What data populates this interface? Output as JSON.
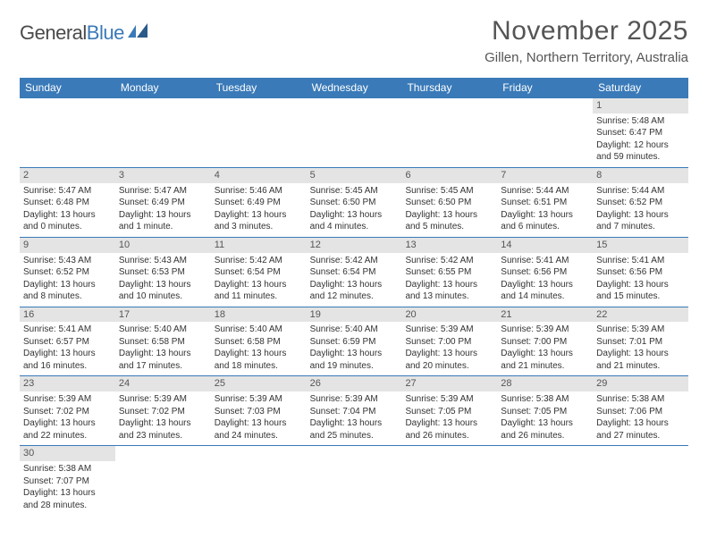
{
  "logo": {
    "part1": "General",
    "part2": "Blue"
  },
  "title": "November 2025",
  "location": "Gillen, Northern Territory, Australia",
  "header_color": "#3a7ab8",
  "daynum_bg": "#e4e4e4",
  "text_color": "#333333",
  "weekdays": [
    "Sunday",
    "Monday",
    "Tuesday",
    "Wednesday",
    "Thursday",
    "Friday",
    "Saturday"
  ],
  "weeks": [
    [
      {
        "empty": true
      },
      {
        "empty": true
      },
      {
        "empty": true
      },
      {
        "empty": true
      },
      {
        "empty": true
      },
      {
        "empty": true
      },
      {
        "n": "1",
        "sunrise": "Sunrise: 5:48 AM",
        "sunset": "Sunset: 6:47 PM",
        "daylight": "Daylight: 12 hours and 59 minutes."
      }
    ],
    [
      {
        "n": "2",
        "sunrise": "Sunrise: 5:47 AM",
        "sunset": "Sunset: 6:48 PM",
        "daylight": "Daylight: 13 hours and 0 minutes."
      },
      {
        "n": "3",
        "sunrise": "Sunrise: 5:47 AM",
        "sunset": "Sunset: 6:49 PM",
        "daylight": "Daylight: 13 hours and 1 minute."
      },
      {
        "n": "4",
        "sunrise": "Sunrise: 5:46 AM",
        "sunset": "Sunset: 6:49 PM",
        "daylight": "Daylight: 13 hours and 3 minutes."
      },
      {
        "n": "5",
        "sunrise": "Sunrise: 5:45 AM",
        "sunset": "Sunset: 6:50 PM",
        "daylight": "Daylight: 13 hours and 4 minutes."
      },
      {
        "n": "6",
        "sunrise": "Sunrise: 5:45 AM",
        "sunset": "Sunset: 6:50 PM",
        "daylight": "Daylight: 13 hours and 5 minutes."
      },
      {
        "n": "7",
        "sunrise": "Sunrise: 5:44 AM",
        "sunset": "Sunset: 6:51 PM",
        "daylight": "Daylight: 13 hours and 6 minutes."
      },
      {
        "n": "8",
        "sunrise": "Sunrise: 5:44 AM",
        "sunset": "Sunset: 6:52 PM",
        "daylight": "Daylight: 13 hours and 7 minutes."
      }
    ],
    [
      {
        "n": "9",
        "sunrise": "Sunrise: 5:43 AM",
        "sunset": "Sunset: 6:52 PM",
        "daylight": "Daylight: 13 hours and 8 minutes."
      },
      {
        "n": "10",
        "sunrise": "Sunrise: 5:43 AM",
        "sunset": "Sunset: 6:53 PM",
        "daylight": "Daylight: 13 hours and 10 minutes."
      },
      {
        "n": "11",
        "sunrise": "Sunrise: 5:42 AM",
        "sunset": "Sunset: 6:54 PM",
        "daylight": "Daylight: 13 hours and 11 minutes."
      },
      {
        "n": "12",
        "sunrise": "Sunrise: 5:42 AM",
        "sunset": "Sunset: 6:54 PM",
        "daylight": "Daylight: 13 hours and 12 minutes."
      },
      {
        "n": "13",
        "sunrise": "Sunrise: 5:42 AM",
        "sunset": "Sunset: 6:55 PM",
        "daylight": "Daylight: 13 hours and 13 minutes."
      },
      {
        "n": "14",
        "sunrise": "Sunrise: 5:41 AM",
        "sunset": "Sunset: 6:56 PM",
        "daylight": "Daylight: 13 hours and 14 minutes."
      },
      {
        "n": "15",
        "sunrise": "Sunrise: 5:41 AM",
        "sunset": "Sunset: 6:56 PM",
        "daylight": "Daylight: 13 hours and 15 minutes."
      }
    ],
    [
      {
        "n": "16",
        "sunrise": "Sunrise: 5:41 AM",
        "sunset": "Sunset: 6:57 PM",
        "daylight": "Daylight: 13 hours and 16 minutes."
      },
      {
        "n": "17",
        "sunrise": "Sunrise: 5:40 AM",
        "sunset": "Sunset: 6:58 PM",
        "daylight": "Daylight: 13 hours and 17 minutes."
      },
      {
        "n": "18",
        "sunrise": "Sunrise: 5:40 AM",
        "sunset": "Sunset: 6:58 PM",
        "daylight": "Daylight: 13 hours and 18 minutes."
      },
      {
        "n": "19",
        "sunrise": "Sunrise: 5:40 AM",
        "sunset": "Sunset: 6:59 PM",
        "daylight": "Daylight: 13 hours and 19 minutes."
      },
      {
        "n": "20",
        "sunrise": "Sunrise: 5:39 AM",
        "sunset": "Sunset: 7:00 PM",
        "daylight": "Daylight: 13 hours and 20 minutes."
      },
      {
        "n": "21",
        "sunrise": "Sunrise: 5:39 AM",
        "sunset": "Sunset: 7:00 PM",
        "daylight": "Daylight: 13 hours and 21 minutes."
      },
      {
        "n": "22",
        "sunrise": "Sunrise: 5:39 AM",
        "sunset": "Sunset: 7:01 PM",
        "daylight": "Daylight: 13 hours and 21 minutes."
      }
    ],
    [
      {
        "n": "23",
        "sunrise": "Sunrise: 5:39 AM",
        "sunset": "Sunset: 7:02 PM",
        "daylight": "Daylight: 13 hours and 22 minutes."
      },
      {
        "n": "24",
        "sunrise": "Sunrise: 5:39 AM",
        "sunset": "Sunset: 7:02 PM",
        "daylight": "Daylight: 13 hours and 23 minutes."
      },
      {
        "n": "25",
        "sunrise": "Sunrise: 5:39 AM",
        "sunset": "Sunset: 7:03 PM",
        "daylight": "Daylight: 13 hours and 24 minutes."
      },
      {
        "n": "26",
        "sunrise": "Sunrise: 5:39 AM",
        "sunset": "Sunset: 7:04 PM",
        "daylight": "Daylight: 13 hours and 25 minutes."
      },
      {
        "n": "27",
        "sunrise": "Sunrise: 5:39 AM",
        "sunset": "Sunset: 7:05 PM",
        "daylight": "Daylight: 13 hours and 26 minutes."
      },
      {
        "n": "28",
        "sunrise": "Sunrise: 5:38 AM",
        "sunset": "Sunset: 7:05 PM",
        "daylight": "Daylight: 13 hours and 26 minutes."
      },
      {
        "n": "29",
        "sunrise": "Sunrise: 5:38 AM",
        "sunset": "Sunset: 7:06 PM",
        "daylight": "Daylight: 13 hours and 27 minutes."
      }
    ],
    [
      {
        "n": "30",
        "sunrise": "Sunrise: 5:38 AM",
        "sunset": "Sunset: 7:07 PM",
        "daylight": "Daylight: 13 hours and 28 minutes."
      },
      {
        "empty": true
      },
      {
        "empty": true
      },
      {
        "empty": true
      },
      {
        "empty": true
      },
      {
        "empty": true
      },
      {
        "empty": true
      }
    ]
  ]
}
